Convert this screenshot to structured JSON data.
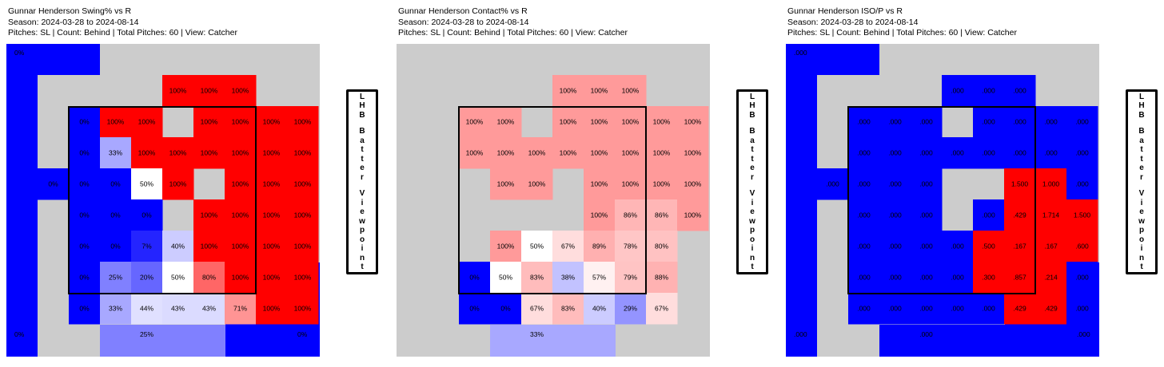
{
  "panels": [
    {
      "title_lines": [
        "Gunnar Henderson Swing% vs R",
        "Season: 2024-03-28 to 2024-08-14",
        "Pitches: SL | Count: Behind | Total Pitches: 60 | View: Catcher"
      ],
      "side_label": "LHB Batter Viewpoint"
    },
    {
      "title_lines": [
        "Gunnar Henderson Contact% vs R",
        "Season: 2024-03-28 to 2024-08-14",
        "Pitches: SL | Count: Behind | Total Pitches: 60 | View: Catcher"
      ],
      "side_label": "LHB Batter Viewpoint"
    },
    {
      "title_lines": [
        "Gunnar Henderson ISO/P vs R",
        "Season: 2024-03-28 to 2024-08-14",
        "Pitches: SL | Count: Behind | Total Pitches: 60 | View: Catcher"
      ],
      "side_label": "LHB Batter Viewpoint"
    }
  ],
  "chart_data": [
    {
      "type": "heatmap",
      "title": "Gunnar Henderson Swing% vs R",
      "colors": {
        "low": "#0000ff",
        "mid": "#ffffff",
        "high": "#ff0000",
        "empty": "#cccccc"
      },
      "outer_zones": [
        {
          "zone": "top-left",
          "value": 0.0,
          "label": "0%"
        },
        {
          "zone": "bottom-left",
          "value": 0.0,
          "label": "0%"
        },
        {
          "zone": "bottom-right",
          "value": 0.0,
          "label": "0%"
        },
        {
          "zone": "bottom-center",
          "value": 0.25,
          "label": "25%"
        }
      ],
      "cells": [
        {
          "r": 0,
          "c": 4,
          "v": 1.0,
          "t": "100%"
        },
        {
          "r": 0,
          "c": 5,
          "v": 1.0,
          "t": "100%"
        },
        {
          "r": 0,
          "c": 6,
          "v": 1.0,
          "t": "100%"
        },
        {
          "r": 1,
          "c": 1,
          "v": 0.0,
          "t": "0%"
        },
        {
          "r": 1,
          "c": 2,
          "v": 1.0,
          "t": "100%"
        },
        {
          "r": 1,
          "c": 3,
          "v": 1.0,
          "t": "100%"
        },
        {
          "r": 1,
          "c": 5,
          "v": 1.0,
          "t": "100%"
        },
        {
          "r": 1,
          "c": 6,
          "v": 1.0,
          "t": "100%"
        },
        {
          "r": 1,
          "c": 7,
          "v": 1.0,
          "t": "100%"
        },
        {
          "r": 1,
          "c": 8,
          "v": 1.0,
          "t": "100%"
        },
        {
          "r": 2,
          "c": 1,
          "v": 0.0,
          "t": "0%"
        },
        {
          "r": 2,
          "c": 2,
          "v": 0.33,
          "t": "33%"
        },
        {
          "r": 2,
          "c": 3,
          "v": 1.0,
          "t": "100%"
        },
        {
          "r": 2,
          "c": 4,
          "v": 1.0,
          "t": "100%"
        },
        {
          "r": 2,
          "c": 5,
          "v": 1.0,
          "t": "100%"
        },
        {
          "r": 2,
          "c": 6,
          "v": 1.0,
          "t": "100%"
        },
        {
          "r": 2,
          "c": 7,
          "v": 1.0,
          "t": "100%"
        },
        {
          "r": 2,
          "c": 8,
          "v": 1.0,
          "t": "100%"
        },
        {
          "r": 3,
          "c": 0,
          "v": 0.0,
          "t": "0%"
        },
        {
          "r": 3,
          "c": 1,
          "v": 0.0,
          "t": "0%"
        },
        {
          "r": 3,
          "c": 2,
          "v": 0.0,
          "t": "0%"
        },
        {
          "r": 3,
          "c": 3,
          "v": 0.5,
          "t": "50%"
        },
        {
          "r": 3,
          "c": 4,
          "v": 1.0,
          "t": "100%"
        },
        {
          "r": 3,
          "c": 6,
          "v": 1.0,
          "t": "100%"
        },
        {
          "r": 3,
          "c": 7,
          "v": 1.0,
          "t": "100%"
        },
        {
          "r": 3,
          "c": 8,
          "v": 1.0,
          "t": "100%"
        },
        {
          "r": 4,
          "c": 1,
          "v": 0.0,
          "t": "0%"
        },
        {
          "r": 4,
          "c": 2,
          "v": 0.0,
          "t": "0%"
        },
        {
          "r": 4,
          "c": 3,
          "v": 0.0,
          "t": "0%"
        },
        {
          "r": 4,
          "c": 5,
          "v": 1.0,
          "t": "100%"
        },
        {
          "r": 4,
          "c": 6,
          "v": 1.0,
          "t": "100%"
        },
        {
          "r": 4,
          "c": 7,
          "v": 1.0,
          "t": "100%"
        },
        {
          "r": 4,
          "c": 8,
          "v": 1.0,
          "t": "100%"
        },
        {
          "r": 5,
          "c": 1,
          "v": 0.0,
          "t": "0%"
        },
        {
          "r": 5,
          "c": 2,
          "v": 0.0,
          "t": "0%"
        },
        {
          "r": 5,
          "c": 3,
          "v": 0.07,
          "t": "7%"
        },
        {
          "r": 5,
          "c": 4,
          "v": 0.4,
          "t": "40%"
        },
        {
          "r": 5,
          "c": 5,
          "v": 1.0,
          "t": "100%"
        },
        {
          "r": 5,
          "c": 6,
          "v": 1.0,
          "t": "100%"
        },
        {
          "r": 5,
          "c": 7,
          "v": 1.0,
          "t": "100%"
        },
        {
          "r": 5,
          "c": 8,
          "v": 1.0,
          "t": "100%"
        },
        {
          "r": 6,
          "c": 1,
          "v": 0.0,
          "t": "0%"
        },
        {
          "r": 6,
          "c": 2,
          "v": 0.25,
          "t": "25%"
        },
        {
          "r": 6,
          "c": 3,
          "v": 0.2,
          "t": "20%"
        },
        {
          "r": 6,
          "c": 4,
          "v": 0.5,
          "t": "50%"
        },
        {
          "r": 6,
          "c": 5,
          "v": 0.8,
          "t": "80%"
        },
        {
          "r": 6,
          "c": 6,
          "v": 1.0,
          "t": "100%"
        },
        {
          "r": 6,
          "c": 7,
          "v": 1.0,
          "t": "100%"
        },
        {
          "r": 6,
          "c": 8,
          "v": 1.0,
          "t": "100%"
        },
        {
          "r": 7,
          "c": 1,
          "v": 0.0,
          "t": "0%"
        },
        {
          "r": 7,
          "c": 2,
          "v": 0.33,
          "t": "33%"
        },
        {
          "r": 7,
          "c": 3,
          "v": 0.44,
          "t": "44%"
        },
        {
          "r": 7,
          "c": 4,
          "v": 0.43,
          "t": "43%"
        },
        {
          "r": 7,
          "c": 5,
          "v": 0.43,
          "t": "43%"
        },
        {
          "r": 7,
          "c": 6,
          "v": 0.71,
          "t": "71%"
        },
        {
          "r": 7,
          "c": 7,
          "v": 1.0,
          "t": "100%"
        },
        {
          "r": 7,
          "c": 8,
          "v": 1.0,
          "t": "100%"
        }
      ]
    },
    {
      "type": "heatmap",
      "title": "Gunnar Henderson Contact% vs R",
      "colors": {
        "low": "#0000ff",
        "mid": "#ffffff",
        "high": "#ff9a9a",
        "empty": "#cccccc"
      },
      "outer_zones": [
        {
          "zone": "bottom-center",
          "value": 0.33,
          "label": "33%"
        }
      ],
      "cells": [
        {
          "r": 0,
          "c": 4,
          "v": 1.0,
          "t": "100%"
        },
        {
          "r": 0,
          "c": 5,
          "v": 1.0,
          "t": "100%"
        },
        {
          "r": 0,
          "c": 6,
          "v": 1.0,
          "t": "100%"
        },
        {
          "r": 1,
          "c": 1,
          "v": 1.0,
          "t": "100%"
        },
        {
          "r": 1,
          "c": 2,
          "v": 1.0,
          "t": "100%"
        },
        {
          "r": 1,
          "c": 4,
          "v": 1.0,
          "t": "100%"
        },
        {
          "r": 1,
          "c": 5,
          "v": 1.0,
          "t": "100%"
        },
        {
          "r": 1,
          "c": 6,
          "v": 1.0,
          "t": "100%"
        },
        {
          "r": 1,
          "c": 7,
          "v": 1.0,
          "t": "100%"
        },
        {
          "r": 1,
          "c": 8,
          "v": 1.0,
          "t": "100%"
        },
        {
          "r": 2,
          "c": 1,
          "v": 1.0,
          "t": "100%"
        },
        {
          "r": 2,
          "c": 2,
          "v": 1.0,
          "t": "100%"
        },
        {
          "r": 2,
          "c": 3,
          "v": 1.0,
          "t": "100%"
        },
        {
          "r": 2,
          "c": 4,
          "v": 1.0,
          "t": "100%"
        },
        {
          "r": 2,
          "c": 5,
          "v": 1.0,
          "t": "100%"
        },
        {
          "r": 2,
          "c": 6,
          "v": 1.0,
          "t": "100%"
        },
        {
          "r": 2,
          "c": 7,
          "v": 1.0,
          "t": "100%"
        },
        {
          "r": 2,
          "c": 8,
          "v": 1.0,
          "t": "100%"
        },
        {
          "r": 3,
          "c": 2,
          "v": 1.0,
          "t": "100%"
        },
        {
          "r": 3,
          "c": 3,
          "v": 1.0,
          "t": "100%"
        },
        {
          "r": 3,
          "c": 5,
          "v": 1.0,
          "t": "100%"
        },
        {
          "r": 3,
          "c": 6,
          "v": 1.0,
          "t": "100%"
        },
        {
          "r": 3,
          "c": 7,
          "v": 1.0,
          "t": "100%"
        },
        {
          "r": 3,
          "c": 8,
          "v": 1.0,
          "t": "100%"
        },
        {
          "r": 4,
          "c": 5,
          "v": 1.0,
          "t": "100%"
        },
        {
          "r": 4,
          "c": 6,
          "v": 0.86,
          "t": "86%"
        },
        {
          "r": 4,
          "c": 7,
          "v": 0.86,
          "t": "86%"
        },
        {
          "r": 4,
          "c": 8,
          "v": 1.0,
          "t": "100%"
        },
        {
          "r": 5,
          "c": 2,
          "v": 1.0,
          "t": "100%"
        },
        {
          "r": 5,
          "c": 3,
          "v": 0.5,
          "t": "50%"
        },
        {
          "r": 5,
          "c": 4,
          "v": 0.67,
          "t": "67%"
        },
        {
          "r": 5,
          "c": 5,
          "v": 0.89,
          "t": "89%"
        },
        {
          "r": 5,
          "c": 6,
          "v": 0.78,
          "t": "78%"
        },
        {
          "r": 5,
          "c": 7,
          "v": 0.8,
          "t": "80%"
        },
        {
          "r": 6,
          "c": 1,
          "v": 0.0,
          "t": "0%"
        },
        {
          "r": 6,
          "c": 2,
          "v": 0.5,
          "t": "50%"
        },
        {
          "r": 6,
          "c": 3,
          "v": 0.83,
          "t": "83%"
        },
        {
          "r": 6,
          "c": 4,
          "v": 0.38,
          "t": "38%"
        },
        {
          "r": 6,
          "c": 5,
          "v": 0.57,
          "t": "57%"
        },
        {
          "r": 6,
          "c": 6,
          "v": 0.79,
          "t": "79%"
        },
        {
          "r": 6,
          "c": 7,
          "v": 0.88,
          "t": "88%"
        },
        {
          "r": 7,
          "c": 1,
          "v": 0.0,
          "t": "0%"
        },
        {
          "r": 7,
          "c": 2,
          "v": 0.0,
          "t": "0%"
        },
        {
          "r": 7,
          "c": 3,
          "v": 0.67,
          "t": "67%"
        },
        {
          "r": 7,
          "c": 4,
          "v": 0.83,
          "t": "83%"
        },
        {
          "r": 7,
          "c": 5,
          "v": 0.4,
          "t": "40%"
        },
        {
          "r": 7,
          "c": 6,
          "v": 0.29,
          "t": "29%"
        },
        {
          "r": 7,
          "c": 7,
          "v": 0.67,
          "t": "67%"
        }
      ]
    },
    {
      "type": "heatmap",
      "title": "Gunnar Henderson ISO/P vs R",
      "colors": {
        "low": "#0000ff",
        "high": "#ff0000",
        "empty": "#cccccc"
      },
      "outer_zones": [
        {
          "zone": "top-left",
          "value": 0.0,
          "label": ".000"
        },
        {
          "zone": "bottom-left",
          "value": 0.0,
          "label": ".000"
        },
        {
          "zone": "bottom-right",
          "value": 0.0,
          "label": ".000"
        },
        {
          "zone": "bottom-center",
          "value": 0.0,
          "label": ".000"
        }
      ],
      "cells": [
        {
          "r": 0,
          "c": 4,
          "v": 0.0,
          "t": ".000"
        },
        {
          "r": 0,
          "c": 5,
          "v": 0.0,
          "t": ".000"
        },
        {
          "r": 0,
          "c": 6,
          "v": 0.0,
          "t": ".000"
        },
        {
          "r": 1,
          "c": 1,
          "v": 0.0,
          "t": ".000"
        },
        {
          "r": 1,
          "c": 2,
          "v": 0.0,
          "t": ".000"
        },
        {
          "r": 1,
          "c": 3,
          "v": 0.0,
          "t": ".000"
        },
        {
          "r": 1,
          "c": 5,
          "v": 0.0,
          "t": ".000"
        },
        {
          "r": 1,
          "c": 6,
          "v": 0.0,
          "t": ".000"
        },
        {
          "r": 1,
          "c": 7,
          "v": 0.0,
          "t": ".000"
        },
        {
          "r": 1,
          "c": 8,
          "v": 0.0,
          "t": ".000"
        },
        {
          "r": 2,
          "c": 1,
          "v": 0.0,
          "t": ".000"
        },
        {
          "r": 2,
          "c": 2,
          "v": 0.0,
          "t": ".000"
        },
        {
          "r": 2,
          "c": 3,
          "v": 0.0,
          "t": ".000"
        },
        {
          "r": 2,
          "c": 4,
          "v": 0.0,
          "t": ".000"
        },
        {
          "r": 2,
          "c": 5,
          "v": 0.0,
          "t": ".000"
        },
        {
          "r": 2,
          "c": 6,
          "v": 0.0,
          "t": ".000"
        },
        {
          "r": 2,
          "c": 7,
          "v": 0.0,
          "t": ".000"
        },
        {
          "r": 2,
          "c": 8,
          "v": 0.0,
          "t": ".000"
        },
        {
          "r": 3,
          "c": 0,
          "v": 0.0,
          "t": ".000"
        },
        {
          "r": 3,
          "c": 1,
          "v": 0.0,
          "t": ".000"
        },
        {
          "r": 3,
          "c": 2,
          "v": 0.0,
          "t": ".000"
        },
        {
          "r": 3,
          "c": 3,
          "v": 0.0,
          "t": ".000"
        },
        {
          "r": 3,
          "c": 6,
          "v": 1.5,
          "t": "1.500"
        },
        {
          "r": 3,
          "c": 7,
          "v": 1.0,
          "t": "1.000"
        },
        {
          "r": 3,
          "c": 8,
          "v": 0.0,
          "t": ".000"
        },
        {
          "r": 4,
          "c": 1,
          "v": 0.0,
          "t": ".000"
        },
        {
          "r": 4,
          "c": 2,
          "v": 0.0,
          "t": ".000"
        },
        {
          "r": 4,
          "c": 3,
          "v": 0.0,
          "t": ".000"
        },
        {
          "r": 4,
          "c": 5,
          "v": 0.0,
          "t": ".000"
        },
        {
          "r": 4,
          "c": 6,
          "v": 0.429,
          "t": ".429"
        },
        {
          "r": 4,
          "c": 7,
          "v": 1.714,
          "t": "1.714"
        },
        {
          "r": 4,
          "c": 8,
          "v": 1.5,
          "t": "1.500"
        },
        {
          "r": 5,
          "c": 1,
          "v": 0.0,
          "t": ".000"
        },
        {
          "r": 5,
          "c": 2,
          "v": 0.0,
          "t": ".000"
        },
        {
          "r": 5,
          "c": 3,
          "v": 0.0,
          "t": ".000"
        },
        {
          "r": 5,
          "c": 4,
          "v": 0.0,
          "t": ".000"
        },
        {
          "r": 5,
          "c": 5,
          "v": 0.5,
          "t": ".500"
        },
        {
          "r": 5,
          "c": 6,
          "v": 0.167,
          "t": ".167"
        },
        {
          "r": 5,
          "c": 7,
          "v": 0.167,
          "t": ".167"
        },
        {
          "r": 5,
          "c": 8,
          "v": 0.6,
          "t": ".600"
        },
        {
          "r": 6,
          "c": 1,
          "v": 0.0,
          "t": ".000"
        },
        {
          "r": 6,
          "c": 2,
          "v": 0.0,
          "t": ".000"
        },
        {
          "r": 6,
          "c": 3,
          "v": 0.0,
          "t": ".000"
        },
        {
          "r": 6,
          "c": 4,
          "v": 0.0,
          "t": ".000"
        },
        {
          "r": 6,
          "c": 5,
          "v": 0.3,
          "t": ".300"
        },
        {
          "r": 6,
          "c": 6,
          "v": 0.857,
          "t": ".857"
        },
        {
          "r": 6,
          "c": 7,
          "v": 0.214,
          "t": ".214"
        },
        {
          "r": 6,
          "c": 8,
          "v": 0.0,
          "t": ".000"
        },
        {
          "r": 7,
          "c": 1,
          "v": 0.0,
          "t": ".000"
        },
        {
          "r": 7,
          "c": 2,
          "v": 0.0,
          "t": ".000"
        },
        {
          "r": 7,
          "c": 3,
          "v": 0.0,
          "t": ".000"
        },
        {
          "r": 7,
          "c": 4,
          "v": 0.0,
          "t": ".000"
        },
        {
          "r": 7,
          "c": 5,
          "v": 0.0,
          "t": ".000"
        },
        {
          "r": 7,
          "c": 6,
          "v": 0.429,
          "t": ".429"
        },
        {
          "r": 7,
          "c": 7,
          "v": 0.429,
          "t": ".429"
        },
        {
          "r": 7,
          "c": 8,
          "v": 0.0,
          "t": ".000"
        }
      ]
    }
  ]
}
